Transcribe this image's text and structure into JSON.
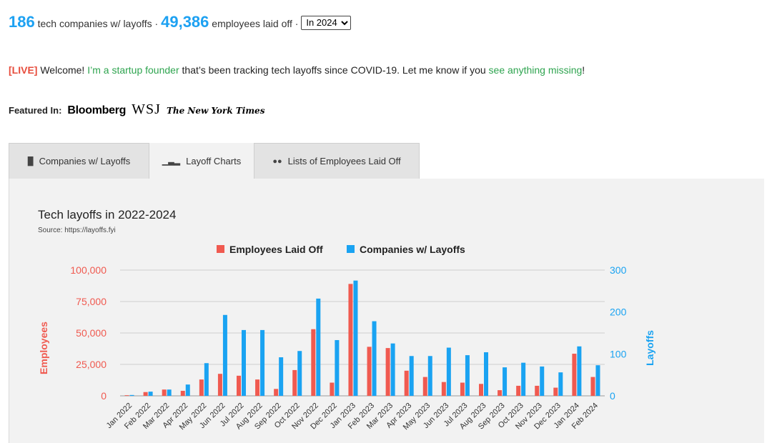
{
  "stats": {
    "companies_count": "186",
    "companies_text": "tech companies w/ layoffs ·",
    "employees_count": "49,386",
    "employees_text": "employees laid off ·",
    "period_selected": "In 2024"
  },
  "welcome": {
    "live_tag": "[LIVE]",
    "text_1": "Welcome!",
    "founder_link": "I’m a startup founder",
    "text_2": "that’s been tracking tech layoffs since COVID-19. Let me know if you",
    "missing_link": "see anything missing",
    "text_3": "!"
  },
  "featured": {
    "label": "Featured In:",
    "outlets": [
      "Bloomberg",
      "WSJ",
      "The New York Times"
    ]
  },
  "tabs": [
    {
      "label": "Companies w/ Layoffs",
      "icon": "building-icon",
      "active": false
    },
    {
      "label": "Layoff Charts",
      "icon": "bar-chart-icon",
      "active": true
    },
    {
      "label": "Lists of Employees Laid Off",
      "icon": "users-icon",
      "active": false
    }
  ],
  "colors": {
    "employees": "#f05a50",
    "companies": "#1aa3f2"
  },
  "chart_data": {
    "type": "bar",
    "title": "Tech layoffs in 2022-2024",
    "subtitle": "Source: https://layoffs.fyi",
    "legend_position": "top-center",
    "grid": true,
    "categories": [
      "Jan 2022",
      "Feb 2022",
      "Mar 2022",
      "Apr 2022",
      "May 2022",
      "Jun 2022",
      "Jul 2022",
      "Aug 2022",
      "Sep 2022",
      "Oct 2022",
      "Nov 2022",
      "Dec 2022",
      "Jan 2023",
      "Feb 2023",
      "Mar 2023",
      "Apr 2023",
      "May 2023",
      "Jun 2023",
      "Jul 2023",
      "Aug 2023",
      "Sep 2023",
      "Oct 2023",
      "Nov 2023",
      "Dec 2023",
      "Jan 2024",
      "Feb 2024"
    ],
    "series": [
      {
        "name": "Employees Laid Off",
        "axis": "left",
        "values": [
          500,
          3000,
          5000,
          4000,
          13000,
          17500,
          16000,
          13000,
          5500,
          20500,
          53000,
          10500,
          89000,
          39000,
          38000,
          20000,
          15000,
          11000,
          10500,
          9500,
          4500,
          8000,
          8000,
          6500,
          33500,
          15000
        ]
      },
      {
        "name": "Companies w/ Layoffs",
        "axis": "right",
        "values": [
          2,
          10,
          15,
          27,
          78,
          193,
          157,
          157,
          92,
          107,
          232,
          133,
          275,
          178,
          125,
          95,
          95,
          115,
          97,
          104,
          68,
          79,
          70,
          56,
          118,
          73
        ]
      }
    ],
    "left_axis": {
      "label": "Employees",
      "ylim": [
        0,
        100000
      ],
      "ticks": [
        "0",
        "25,000",
        "50,000",
        "75,000",
        "100,000"
      ]
    },
    "right_axis": {
      "label": "Layoffs",
      "ylim": [
        0,
        300
      ],
      "ticks": [
        "0",
        "100",
        "200",
        "300"
      ]
    }
  }
}
